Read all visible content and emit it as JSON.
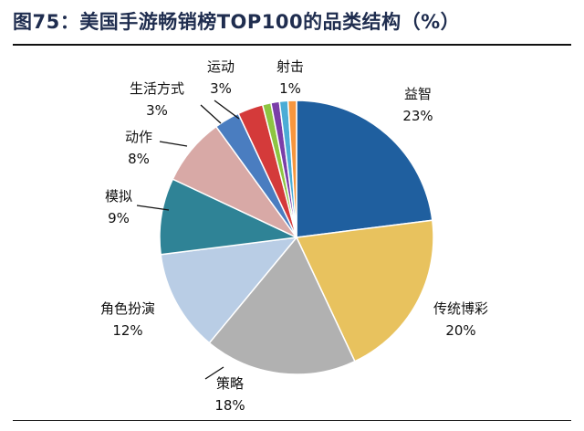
{
  "chart_data": {
    "type": "pie",
    "title": "图75：美国手游畅销榜TOP100的品类结构（%）",
    "slices": [
      {
        "name": "益智",
        "value": 23,
        "label": "23%",
        "color": "#1f5f9f"
      },
      {
        "name": "传统博彩",
        "value": 20,
        "label": "20%",
        "color": "#e8c25e"
      },
      {
        "name": "策略",
        "value": 18,
        "label": "18%",
        "color": "#b1b1b1"
      },
      {
        "name": "角色扮演",
        "value": 12,
        "label": "12%",
        "color": "#b9cde5"
      },
      {
        "name": "模拟",
        "value": 9,
        "label": "9%",
        "color": "#2f8396"
      },
      {
        "name": "动作",
        "value": 8,
        "label": "8%",
        "color": "#d8a9a6"
      },
      {
        "name": "生活方式",
        "value": 3,
        "label": "3%",
        "color": "#4a7dc0"
      },
      {
        "name": "运动",
        "value": 3,
        "label": "3%",
        "color": "#d43a3a"
      },
      {
        "name": "",
        "value": 1,
        "label": "",
        "color": "#8dc542"
      },
      {
        "name": "",
        "value": 1,
        "label": "",
        "color": "#7a3ea8"
      },
      {
        "name": "",
        "value": 1,
        "label": "",
        "color": "#4bacd6"
      },
      {
        "name": "射击",
        "value": 1,
        "label": "1%",
        "color": "#f7963e"
      }
    ],
    "legend": "none"
  }
}
